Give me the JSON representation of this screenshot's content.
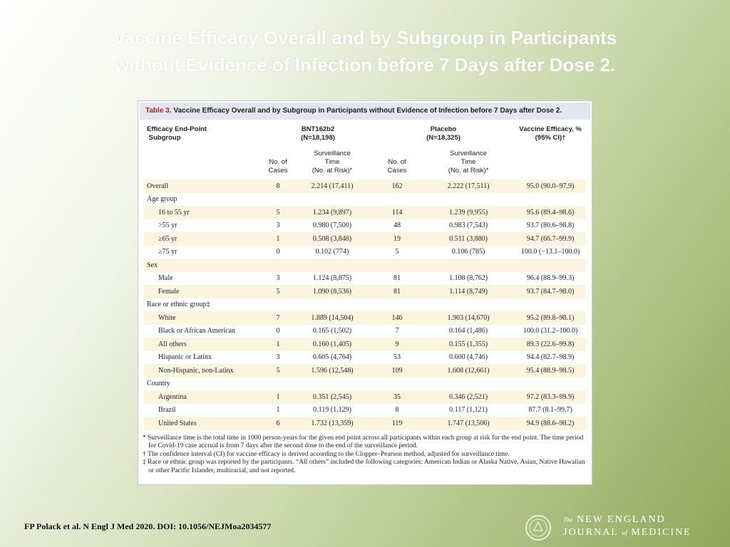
{
  "slide": {
    "title_line1": "Vaccine Efficacy Overall and by Subgroup in Participants",
    "title_line2": "without Evidence of Infection before 7 Days after Dose 2.",
    "citation": "FP Polack et al. N Engl J Med 2020. DOI: 10.1056/NEJMoa2034577",
    "logo": {
      "the": "The",
      "line1": "NEW ENGLAND",
      "line2a": "JOURNAL",
      "of": "of",
      "line2b": "MEDICINE"
    }
  },
  "table": {
    "caption_label": "Table 3.",
    "caption": "Vaccine Efficacy Overall and by Subgroup in Participants without Evidence of Infection before 7 Days after Dose 2.",
    "header": {
      "endpoint": "Efficacy End-Point",
      "subgroup": "Subgroup",
      "group1": "BNT162b2",
      "group1_n": "(N=18,198)",
      "group2": "Placebo",
      "group2_n": "(N=18,325)",
      "efficacy": "Vaccine Efficacy, %",
      "efficacy_ci": "(95% CI)†",
      "cases": [
        "No. of",
        "Cases"
      ],
      "time": [
        "Surveillance",
        "Time",
        "(No. at Risk)*"
      ]
    },
    "body": [
      {
        "label": "Overall",
        "cells": [
          "8",
          "2.214 (17,411)",
          "162",
          "2.222 (17,511)",
          "95.0 (90.0–97.9)"
        ]
      },
      {
        "label": "Age group",
        "rows": [
          {
            "label": "16 to 55 yr",
            "cells": [
              "5",
              "1.234 (9,897)",
              "114",
              "1.239 (9,955)",
              "95.6 (89.4–98.6)"
            ]
          },
          {
            "label": ">55 yr",
            "cells": [
              "3",
              "0.980 (7,500)",
              "48",
              "0.983 (7,543)",
              "93.7 (80.6–98.8)"
            ]
          },
          {
            "label": "≥65 yr",
            "cells": [
              "1",
              "0.508 (3,848)",
              "19",
              "0.511 (3,880)",
              "94.7 (66.7–99.9)"
            ]
          },
          {
            "label": "≥75 yr",
            "cells": [
              "0",
              "0.102 (774)",
              "5",
              "0.106 (785)",
              "100.0 (−13.1–100.0)"
            ]
          }
        ]
      },
      {
        "label": "Sex",
        "rows": [
          {
            "label": "Male",
            "cells": [
              "3",
              "1.124 (8,875)",
              "81",
              "1.108 (8,762)",
              "96.4 (88.9–99.3)"
            ]
          },
          {
            "label": "Female",
            "cells": [
              "5",
              "1.090 (8,536)",
              "81",
              "1.114 (8,749)",
              "93.7 (84.7–98.0)"
            ]
          }
        ]
      },
      {
        "label": "Race or ethnic group‡",
        "rows": [
          {
            "label": "White",
            "cells": [
              "7",
              "1.889 (14,504)",
              "146",
              "1.903 (14,670)",
              "95.2 (89.8–98.1)"
            ]
          },
          {
            "label": "Black or African American",
            "cells": [
              "0",
              "0.165 (1,502)",
              "7",
              "0.164 (1,486)",
              "100.0 (31.2–100.0)"
            ]
          },
          {
            "label": "All others",
            "cells": [
              "1",
              "0.160 (1,405)",
              "9",
              "0.155 (1,355)",
              "89.3 (22.6–99.8)"
            ]
          },
          {
            "label": "Hispanic or Latinx",
            "cells": [
              "3",
              "0.605 (4,764)",
              "53",
              "0.600 (4,746)",
              "94.4 (82.7–98.9)"
            ]
          },
          {
            "label": "Non-Hispanic, non-Latinx",
            "cells": [
              "5",
              "1.596 (12,548)",
              "109",
              "1.608 (12,661)",
              "95.4 (88.9–98.5)"
            ]
          }
        ]
      },
      {
        "label": "Country",
        "rows": [
          {
            "label": "Argentina",
            "cells": [
              "1",
              "0.351 (2,545)",
              "35",
              "0.346 (2,521)",
              "97.2 (83.3–99.9)"
            ]
          },
          {
            "label": "Brazil",
            "cells": [
              "1",
              "0.119 (1,129)",
              "8",
              "0.117 (1,121)",
              "87.7 (8.1–99.7)"
            ]
          },
          {
            "label": "United States",
            "cells": [
              "6",
              "1.732 (13,359)",
              "119",
              "1.747 (13,506)",
              "94.9 (88.6–98.2)"
            ]
          }
        ]
      }
    ],
    "footnotes": [
      "* Surveillance time is the total time in 1000 person-years for the given end point across all participants within each group at risk for the end point. The time period for Covid-19 case accrual is from 7 days after the second dose to the end of the surveillance period.",
      "† The confidence interval (CI) for vaccine efficacy is derived according to the Clopper–Pearson method, adjusted for surveillance time.",
      "‡ Race or ethnic group was reported by the participants. “All others” included the following categories: American Indian or Alaska Native, Asian, Native Hawaiian or other Pacific Islander, multiracial, and not reported."
    ]
  }
}
